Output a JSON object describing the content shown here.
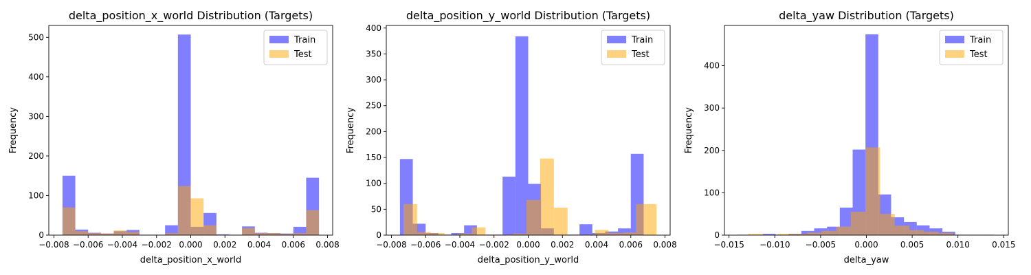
{
  "charts": [
    {
      "type": "histogram",
      "title": "delta_position_x_world Distribution (Targets)",
      "xlabel": "delta_position_x_world",
      "ylabel": "Frequency",
      "xlim": [
        -0.0083,
        0.0083
      ],
      "ylim": [
        0,
        530
      ],
      "xticks": [
        -0.008,
        -0.006,
        -0.004,
        -0.002,
        0.0,
        0.002,
        0.004,
        0.006,
        0.008
      ],
      "xtick_labels": [
        "−0.008",
        "−0.006",
        "−0.004",
        "−0.002",
        "0.000",
        "0.002",
        "0.004",
        "0.006",
        "0.008"
      ],
      "yticks": [
        0,
        100,
        200,
        300,
        400,
        500
      ],
      "legend": {
        "position": "top-right"
      },
      "series": [
        {
          "name": "Train",
          "color": "#0000ff",
          "alpha": 0.5,
          "bin_edges": [
            -0.0075,
            -0.00675,
            -0.006,
            -0.00525,
            -0.0045,
            -0.00375,
            -0.003,
            -0.00225,
            -0.0015,
            -0.00075,
            0.0,
            0.00075,
            0.0015,
            0.00225,
            0.003,
            0.00375,
            0.0045,
            0.00525,
            0.006,
            0.00675,
            0.0075
          ],
          "counts": [
            150,
            14,
            6,
            4,
            10,
            13,
            1,
            1,
            25,
            507,
            21,
            56,
            2,
            1,
            22,
            6,
            5,
            4,
            21,
            145
          ]
        },
        {
          "name": "Test",
          "color": "#ffa500",
          "alpha": 0.5,
          "bin_edges": [
            -0.0075,
            -0.00675,
            -0.006,
            -0.00525,
            -0.0045,
            -0.00375,
            -0.003,
            -0.00225,
            -0.0015,
            -0.00075,
            0.0,
            0.00075,
            0.0015,
            0.00225,
            0.003,
            0.00375,
            0.0045,
            0.00525,
            0.006,
            0.00675,
            0.0075
          ],
          "counts": [
            70,
            10,
            5,
            4,
            12,
            8,
            0,
            1,
            5,
            124,
            93,
            25,
            1,
            1,
            18,
            5,
            5,
            3,
            5,
            63
          ]
        }
      ]
    },
    {
      "type": "histogram",
      "title": "delta_position_y_world Distribution (Targets)",
      "xlabel": "delta_position_y_world",
      "ylabel": "Frequency",
      "xlim": [
        -0.0083,
        0.0083
      ],
      "ylim": [
        0,
        405
      ],
      "xticks": [
        -0.008,
        -0.006,
        -0.004,
        -0.002,
        0.0,
        0.002,
        0.004,
        0.006,
        0.008
      ],
      "xtick_labels": [
        "−0.008",
        "−0.006",
        "−0.004",
        "−0.002",
        "0.000",
        "0.002",
        "0.004",
        "0.006",
        "0.008"
      ],
      "yticks": [
        0,
        50,
        100,
        150,
        200,
        250,
        300,
        350,
        400
      ],
      "legend": {
        "position": "top-right"
      },
      "series": [
        {
          "name": "Train",
          "color": "#0000ff",
          "alpha": 0.5,
          "bin_edges": [
            -0.0075,
            -0.00675,
            -0.006,
            -0.00525,
            -0.0045,
            -0.00375,
            -0.003,
            -0.00225,
            -0.0015,
            -0.00075,
            0.0,
            0.00075,
            0.0015,
            0.00225,
            0.003,
            0.00375,
            0.0045,
            0.00525,
            0.006,
            0.00675,
            0.0075
          ],
          "counts": [
            147,
            22,
            4,
            1,
            4,
            19,
            1,
            1,
            113,
            384,
            99,
            13,
            1,
            1,
            21,
            4,
            7,
            13,
            157,
            0
          ]
        },
        {
          "name": "Test",
          "color": "#ffa500",
          "alpha": 0.5,
          "bin_edges": [
            -0.0073,
            -0.0065,
            -0.0057,
            -0.0049,
            -0.0041,
            -0.0033,
            -0.0025,
            -0.0017,
            -0.0009,
            -0.0001,
            0.0007,
            0.0015,
            0.0023,
            0.0031,
            0.0039,
            0.0047,
            0.0055,
            0.0063,
            0.0075
          ],
          "counts": [
            60,
            6,
            4,
            1,
            3,
            15,
            1,
            1,
            3,
            68,
            148,
            53,
            1,
            1,
            10,
            4,
            5,
            60
          ]
        }
      ]
    },
    {
      "type": "histogram",
      "title": "delta_yaw Distribution (Targets)",
      "xlabel": "delta_yaw",
      "ylabel": "Frequency",
      "xlim": [
        -0.0155,
        0.0155
      ],
      "ylim": [
        0,
        495
      ],
      "xticks": [
        -0.015,
        -0.01,
        -0.005,
        0.0,
        0.005,
        0.01,
        0.015
      ],
      "xtick_labels": [
        "−0.015",
        "−0.010",
        "−0.005",
        "0.000",
        "0.005",
        "0.010",
        "0.015"
      ],
      "yticks": [
        0,
        100,
        200,
        300,
        400
      ],
      "legend": {
        "position": "top-right"
      },
      "series": [
        {
          "name": "Train",
          "color": "#0000ff",
          "alpha": 0.5,
          "bin_edges": [
            -0.0141,
            -0.0127,
            -0.0113,
            -0.0099,
            -0.0085,
            -0.0071,
            -0.0057,
            -0.0043,
            -0.0029,
            -0.0015,
            -0.0001,
            0.0013,
            0.0027,
            0.0041,
            0.0055,
            0.0069,
            0.0083,
            0.0097,
            0.0111,
            0.0125,
            0.0139
          ],
          "counts": [
            1,
            0,
            3,
            1,
            3,
            10,
            16,
            20,
            65,
            202,
            474,
            96,
            42,
            31,
            23,
            16,
            8,
            1,
            1,
            1
          ]
        },
        {
          "name": "Test",
          "color": "#ffa500",
          "alpha": 0.5,
          "bin_edges": [
            -0.0129,
            -0.0113,
            -0.0097,
            -0.0081,
            -0.0065,
            -0.0049,
            -0.0033,
            -0.0017,
            -0.0001,
            0.0015,
            0.0031,
            0.0047,
            0.0063,
            0.0079,
            0.0095
          ],
          "counts": [
            3,
            1,
            3,
            3,
            6,
            10,
            20,
            55,
            207,
            50,
            22,
            12,
            8,
            5
          ]
        }
      ]
    }
  ]
}
